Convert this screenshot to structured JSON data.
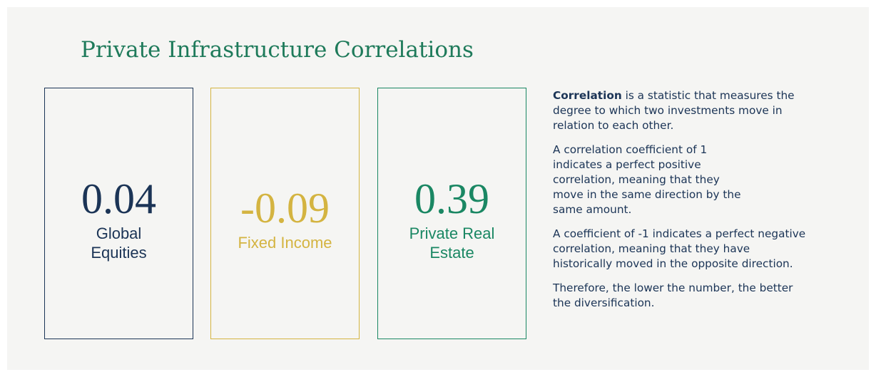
{
  "title": "Private Infrastructure Correlations",
  "cards": [
    {
      "value": 0.04,
      "label": "Global Equities",
      "color": "#1b3456"
    },
    {
      "value": -0.09,
      "label": "Fixed Income",
      "color": "#d4b441"
    },
    {
      "value": 0.39,
      "label": "Private Real Estate",
      "color": "#1a8763"
    }
  ],
  "text": {
    "intro_term": "Correlation",
    "intro_rest": "is a statistic that measures the degree to which two investments move in relation to each other.",
    "paragraphs": [
      "A correlation coefficient of 1 indicates a perfect positive correlation, meaning that they move in the same direction by the same amount.",
      "A coefficient of -1 indicates a perfect negative correlation, meaning that they have historically moved in the opposite direction.",
      "Therefore, the lower the number, the better the diversification."
    ]
  }
}
